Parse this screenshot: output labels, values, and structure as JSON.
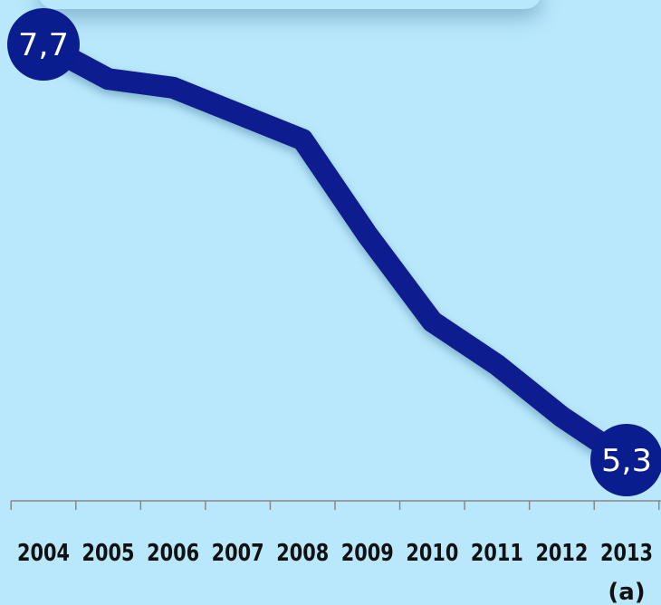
{
  "chart_data": {
    "type": "line",
    "categories": [
      "2004",
      "2005",
      "2006",
      "2007",
      "2008",
      "2009",
      "2010",
      "2011",
      "2012",
      "2013"
    ],
    "category_notes": [
      "",
      "",
      "",
      "",
      "",
      "",
      "",
      "",
      "",
      "(a)"
    ],
    "series": [
      {
        "values": [
          7.7,
          7.5,
          7.45,
          7.3,
          7.15,
          6.6,
          6.1,
          5.85,
          5.55,
          5.3
        ]
      }
    ],
    "end_labels": [
      "7,7",
      "5,3"
    ],
    "ylim": [
      5.3,
      7.7
    ],
    "grid": false,
    "legend": "none",
    "colors": {
      "line": "#0a1d8f",
      "marker": "#0a1d8f",
      "background": "#b9e8fc",
      "axis": "#888888"
    }
  }
}
